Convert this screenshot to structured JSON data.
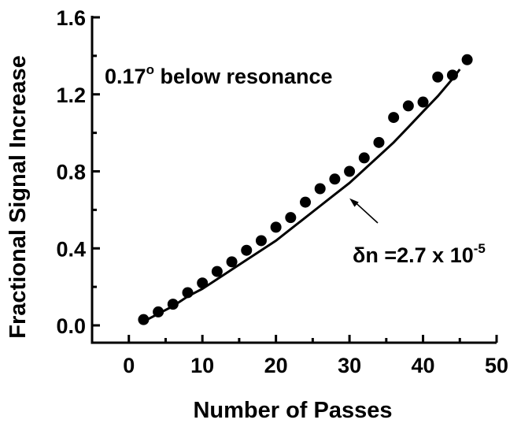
{
  "chart_data": {
    "type": "scatter",
    "xlabel": "Number of Passes",
    "ylabel": "Fractional Signal Increase",
    "xlim": [
      -5,
      50
    ],
    "ylim": [
      -0.09,
      1.6
    ],
    "x_ticks": [
      0,
      10,
      20,
      30,
      40,
      50
    ],
    "x_tick_labels": [
      "0",
      "10",
      "20",
      "30",
      "40",
      "50"
    ],
    "y_ticks": [
      0.0,
      0.4,
      0.8,
      1.2,
      1.6
    ],
    "y_tick_labels": [
      "0.0",
      "0.4",
      "0.8",
      "1.2",
      "1.6"
    ],
    "grid": false,
    "series": [
      {
        "kind": "points",
        "marker": "filled-circle",
        "x": [
          2,
          4,
          6,
          8,
          10,
          12,
          14,
          16,
          18,
          20,
          22,
          24,
          26,
          28,
          30,
          32,
          34,
          36,
          38,
          40,
          42,
          44,
          46
        ],
        "y": [
          0.03,
          0.07,
          0.11,
          0.17,
          0.22,
          0.28,
          0.33,
          0.39,
          0.44,
          0.51,
          0.56,
          0.64,
          0.71,
          0.76,
          0.8,
          0.87,
          0.95,
          1.08,
          1.14,
          1.16,
          1.29,
          1.3,
          1.38
        ]
      },
      {
        "kind": "curve",
        "x": [
          2,
          4,
          6,
          8,
          10,
          12,
          14,
          16,
          18,
          20,
          22,
          24,
          26,
          28,
          30,
          32,
          34,
          36,
          38,
          40,
          42,
          44,
          45
        ],
        "y": [
          0.02,
          0.06,
          0.1,
          0.15,
          0.19,
          0.24,
          0.29,
          0.34,
          0.39,
          0.44,
          0.5,
          0.56,
          0.62,
          0.68,
          0.74,
          0.81,
          0.88,
          0.95,
          1.03,
          1.11,
          1.19,
          1.28,
          1.33
        ]
      }
    ],
    "annotations": {
      "condition": {
        "main": "0.17",
        "sup": "o",
        "rest": " below resonance"
      },
      "fit_label": {
        "main": "δn =2.7 x 10",
        "sup": "-5",
        "points_to": [
          30,
          0.66
        ]
      }
    }
  }
}
